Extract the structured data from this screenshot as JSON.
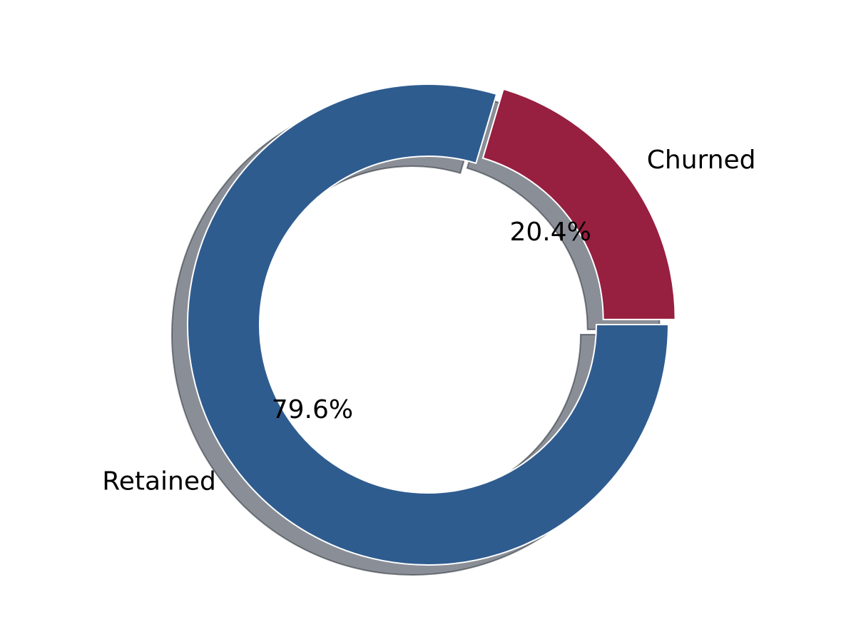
{
  "chart_data": {
    "type": "pie",
    "style": "donut",
    "categories": [
      "Retained",
      "Churned"
    ],
    "values": [
      79.6,
      20.4
    ],
    "percent_labels": [
      "79.6%",
      "20.4%"
    ],
    "colors": [
      "#2f5c8f",
      "#971f40"
    ],
    "exploded": [
      false,
      true
    ],
    "shadow": true,
    "legend": "none"
  }
}
